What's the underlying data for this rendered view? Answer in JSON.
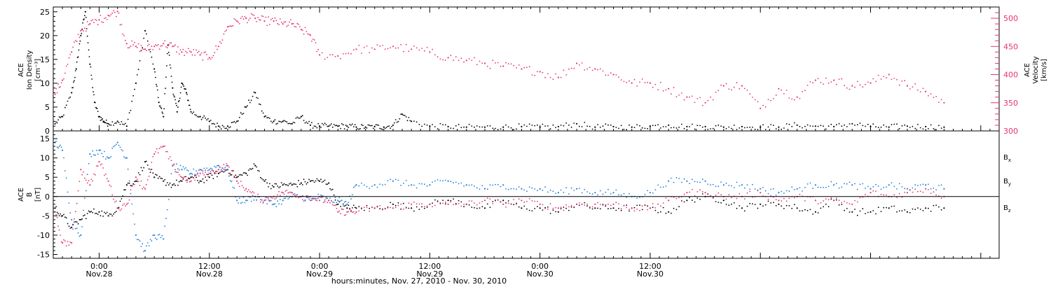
{
  "colors": {
    "black": "#000000",
    "blue": "#1f7ed8",
    "red": "#e8336a"
  },
  "chart_data": [
    {
      "type": "scatter",
      "panel": "top",
      "ylabel": [
        "ACE",
        "Ion Density",
        "[cm⁻³]"
      ],
      "y2label": [
        "ACE",
        "Velocity",
        "[km/s]"
      ],
      "xlim": [
        -5,
        98
      ],
      "ylim": [
        0,
        26
      ],
      "y2lim": [
        300,
        520
      ],
      "yticks": [
        0,
        5,
        10,
        15,
        20,
        25
      ],
      "ytick_labels": [
        "0",
        "5",
        "10",
        "15",
        "20",
        "25"
      ],
      "y2ticks": [
        300,
        350,
        400,
        450,
        500
      ],
      "y2tick_labels": [
        "300",
        "350",
        "400",
        "450",
        "500"
      ],
      "series": [
        {
          "color": "#000000",
          "axis": "left",
          "x": [
            -4.8,
            -4,
            -3,
            -2.5,
            -2,
            -1.5,
            -1,
            -0.5,
            0,
            0.5,
            1,
            2,
            3,
            4,
            5,
            6,
            6.5,
            7,
            7.5,
            8,
            8.5,
            9,
            9.5,
            10,
            11,
            12,
            13,
            14,
            15,
            16,
            17,
            18,
            19,
            20,
            21,
            22,
            23,
            24,
            25,
            26,
            27,
            28,
            29,
            30,
            31,
            32,
            33,
            34,
            36,
            38,
            40,
            42,
            44,
            46,
            48,
            50,
            52,
            54,
            56,
            58,
            60,
            62,
            64,
            66,
            68,
            70,
            72,
            74,
            76,
            78,
            80,
            82,
            84,
            86,
            88,
            90,
            92
          ],
          "y": [
            1.5,
            3,
            8,
            13,
            20,
            25,
            14,
            6,
            3,
            2,
            1.5,
            2,
            1,
            10,
            21,
            13,
            6,
            3,
            18,
            9,
            4,
            10,
            8,
            4,
            3,
            2,
            1,
            1,
            2,
            5,
            8,
            3,
            2,
            2,
            1.5,
            3,
            1.2,
            1,
            1,
            1,
            1,
            0.8,
            0.8,
            0.9,
            0.8,
            1.2,
            3.5,
            2,
            1,
            0.9,
            0.8,
            0.8,
            0.8,
            0.9,
            0.8,
            0.9,
            1.5,
            0.8,
            0.9,
            0.8,
            1,
            1.2,
            0.9,
            0.9,
            0.8,
            0.9,
            0.8,
            0.8,
            1.2,
            1,
            0.9,
            1.5,
            0.9,
            0.8,
            1,
            0.9,
            0.8
          ]
        },
        {
          "color": "#e8336a",
          "axis": "right",
          "x": [
            -4.8,
            -4,
            -3,
            -2,
            -1,
            0,
            1,
            2,
            3,
            4,
            5,
            6,
            7,
            8,
            9,
            10,
            11,
            12,
            13,
            14,
            15,
            16,
            17,
            18,
            19,
            20,
            21,
            22,
            23,
            24,
            26,
            28,
            30,
            32,
            34,
            36,
            38,
            40,
            42,
            44,
            46,
            48,
            50,
            52,
            54,
            56,
            58,
            60,
            62,
            64,
            66,
            68,
            70,
            72,
            74,
            76,
            78,
            80,
            82,
            84,
            86,
            88,
            90,
            92
          ],
          "y": [
            365,
            390,
            440,
            478,
            490,
            497,
            505,
            512,
            455,
            450,
            445,
            450,
            455,
            450,
            440,
            440,
            435,
            430,
            450,
            485,
            495,
            500,
            500,
            495,
            495,
            490,
            490,
            480,
            470,
            435,
            433,
            445,
            445,
            450,
            445,
            440,
            430,
            425,
            420,
            415,
            410,
            405,
            395,
            420,
            410,
            400,
            385,
            385,
            375,
            360,
            350,
            380,
            380,
            340,
            375,
            360,
            390,
            390,
            380,
            385,
            400,
            380,
            370,
            350
          ]
        }
      ]
    },
    {
      "type": "scatter",
      "panel": "bottom",
      "ylabel": [
        "ACE",
        "B",
        "[nT]"
      ],
      "xlim": [
        -5,
        98
      ],
      "ylim": [
        -16,
        17
      ],
      "yticks": [
        -15,
        -10,
        -5,
        0,
        5,
        10,
        15
      ],
      "ytick_labels": [
        "-15",
        "-10",
        "-5",
        "0",
        "5",
        "10",
        "15"
      ],
      "zero_line": true,
      "legend": [
        "Bx",
        "By",
        "Bz"
      ],
      "legend_placement": "right",
      "xticks": [
        0,
        12,
        24,
        36,
        48,
        60,
        72,
        84
      ],
      "xtick_labels": [
        [
          "0:00",
          "Nov.28"
        ],
        [
          "12:00",
          "Nov.28"
        ],
        [
          "0:00",
          "Nov.29"
        ],
        [
          "12:00",
          "Nov.29"
        ],
        [
          "0:00",
          "Nov.30"
        ],
        [
          "12:00",
          "Nov.30"
        ],
        [
          "",
          ""
        ],
        [
          "",
          ""
        ]
      ],
      "xlabel": "hours:minutes, Nov. 27, 2010 - Nov. 30, 2010",
      "series": [
        {
          "name": "Bx",
          "color": "#000000",
          "x": [
            -4.8,
            -4,
            -3,
            -2,
            -1,
            0,
            1,
            2,
            3,
            4,
            5,
            6,
            7,
            8,
            9,
            10,
            11,
            12,
            13,
            14,
            15,
            16,
            17,
            18,
            19,
            20,
            21,
            22,
            23,
            24,
            25,
            26,
            27,
            28,
            30,
            32,
            34,
            36,
            38,
            40,
            42,
            44,
            46,
            48,
            50,
            52,
            54,
            56,
            58,
            60,
            62,
            64,
            66,
            68,
            70,
            72,
            74,
            76,
            78,
            80,
            82,
            84,
            86,
            88,
            90,
            92
          ],
          "y": [
            -3,
            -5,
            -8,
            -6,
            -4,
            -4,
            -5,
            -3,
            3,
            4,
            9,
            5,
            4,
            3,
            4,
            5,
            4,
            5,
            6,
            7,
            5,
            6,
            8,
            4,
            2.5,
            3,
            3,
            3.5,
            4,
            4,
            3.5,
            -2,
            -3,
            -3,
            -3,
            -2,
            -3,
            -2,
            -1,
            -2,
            -3,
            -1,
            -3,
            -3,
            -4,
            -2,
            -3,
            -3,
            -3,
            -3,
            -4,
            -1,
            0,
            -1,
            -3,
            -2,
            -2,
            -3,
            -4,
            -1,
            -4,
            -4,
            -3,
            -4,
            -3,
            -3
          ]
        },
        {
          "name": "By",
          "color": "#1f7ed8",
          "x": [
            -4.8,
            -4,
            -3,
            -2,
            -1,
            0,
            1,
            2,
            3,
            4,
            5,
            6,
            7,
            8,
            9,
            10,
            11,
            12,
            13,
            14,
            15,
            16,
            17,
            18,
            19,
            20,
            21,
            22,
            23,
            24,
            25,
            26,
            27,
            28,
            30,
            32,
            34,
            36,
            38,
            40,
            42,
            44,
            46,
            48,
            50,
            52,
            54,
            56,
            58,
            60,
            62,
            64,
            66,
            68,
            70,
            72,
            74,
            76,
            78,
            80,
            82,
            84,
            86,
            88,
            90,
            92
          ],
          "y": [
            14,
            12,
            -6,
            -10,
            11,
            12,
            10,
            14,
            10,
            -10,
            -14,
            -10,
            -11,
            8,
            7,
            6,
            7,
            7,
            8,
            7,
            -1,
            -1,
            0,
            -1,
            -2,
            -1,
            0,
            0,
            -1,
            0,
            -1,
            -1,
            -2,
            3,
            3,
            4,
            3,
            3,
            4,
            3,
            2,
            3,
            2,
            2,
            1,
            2,
            1,
            1,
            0,
            1,
            4,
            4,
            4,
            3,
            3,
            2,
            1,
            2,
            3,
            3,
            3,
            2,
            3,
            2,
            3,
            2
          ]
        },
        {
          "name": "Bz",
          "color": "#e8336a",
          "x": [
            -4.8,
            -4,
            -3,
            -2,
            -1,
            0,
            1,
            2,
            3,
            4,
            5,
            6,
            7,
            8,
            9,
            10,
            11,
            12,
            13,
            14,
            15,
            16,
            17,
            18,
            19,
            20,
            21,
            22,
            23,
            24,
            25,
            26,
            27,
            28,
            30,
            32,
            34,
            36,
            38,
            40,
            42,
            44,
            46,
            48,
            50,
            52,
            54,
            56,
            58,
            60,
            62,
            64,
            66,
            68,
            70,
            72,
            74,
            76,
            78,
            80,
            82,
            84,
            86,
            88,
            90,
            92
          ],
          "y": [
            -4,
            -12,
            -12,
            7,
            3,
            9,
            4,
            -3,
            -2,
            5,
            2,
            11,
            13,
            8,
            5,
            4,
            6,
            6,
            7,
            8,
            4,
            2,
            0,
            -1,
            0,
            1,
            1,
            0,
            0,
            -1,
            -1,
            -4,
            -4,
            -4,
            -3,
            -3,
            -2,
            -2,
            -2,
            -2,
            -1,
            -2,
            -1,
            -2,
            -3,
            -2,
            -2,
            -2,
            -3,
            -3,
            -1,
            1,
            1,
            0,
            0,
            1,
            -1,
            0,
            -1,
            -1,
            -2,
            1,
            0,
            1,
            2,
            0
          ]
        }
      ]
    }
  ]
}
